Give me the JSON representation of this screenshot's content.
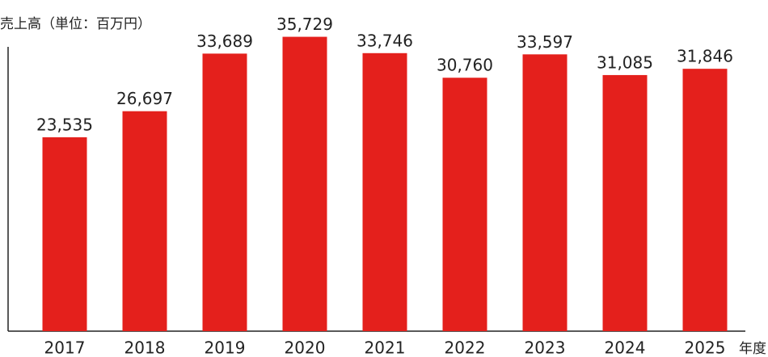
{
  "chart_data": {
    "type": "bar",
    "title": "売上高（単位：百万円）",
    "x_label": "年度",
    "categories": [
      "2017",
      "2018",
      "2019",
      "2020",
      "2021",
      "2022",
      "2023",
      "2024",
      "2025"
    ],
    "values": [
      23535,
      26697,
      33689,
      35729,
      33746,
      30760,
      33597,
      31085,
      31846
    ],
    "value_labels": [
      "23,535",
      "26,697",
      "33,689",
      "35,729",
      "33,746",
      "30,760",
      "33,597",
      "31,085",
      "31,846"
    ],
    "color": "#e4201c",
    "ylim": [
      0,
      40000
    ]
  }
}
